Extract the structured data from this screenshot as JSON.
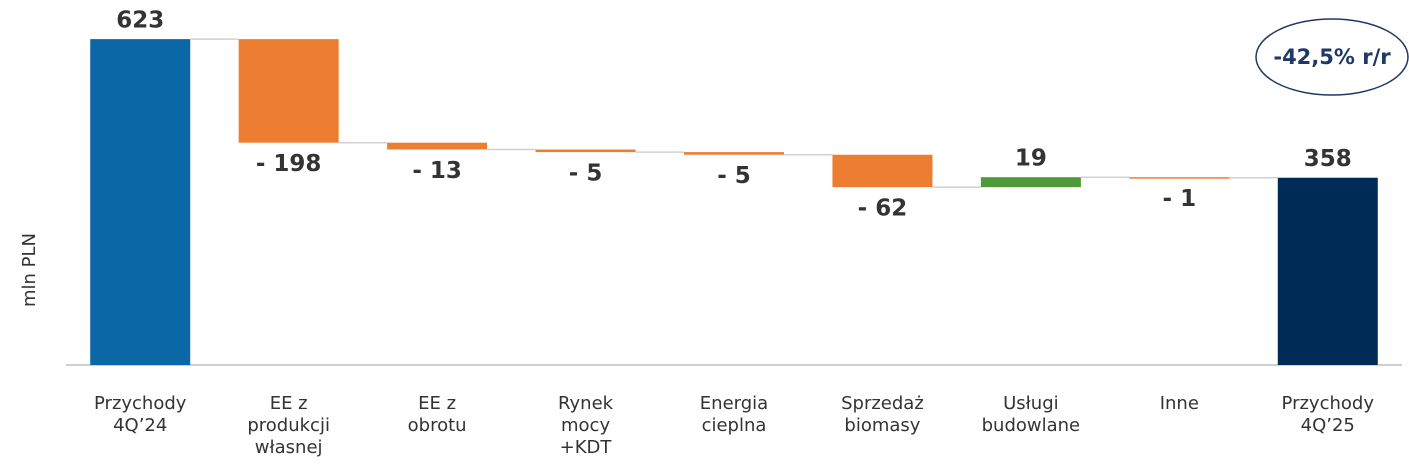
{
  "chart_data": {
    "type": "waterfall",
    "categories": [
      "Przychody\n4Q’24",
      "EE z\nprodukcji\nwłasnej",
      "EE z\nobrotu",
      "Rynek\nmocy\n+KDT",
      "Energia\ncieplna",
      "Sprzedaż\nbiomasy",
      "Usługi\nbudowlane",
      "Inne",
      "Przychody\n4Q’25"
    ],
    "values": [
      623,
      -198,
      -13,
      -5,
      -5,
      -62,
      19,
      -1,
      358
    ],
    "value_labels": [
      "623",
      "- 198",
      "- 13",
      "- 5",
      "- 5",
      "- 62",
      "19",
      "- 1",
      "358"
    ],
    "measure": [
      "total",
      "relative",
      "relative",
      "relative",
      "relative",
      "relative",
      "relative",
      "relative",
      "total"
    ],
    "colors": [
      "#0b67a6",
      "#ed7d31",
      "#ed7d31",
      "#ed7d31",
      "#ed7d31",
      "#ed7d31",
      "#4e9a3b",
      "#ed7d31",
      "#002b57"
    ],
    "ylabel": "mln PLN",
    "annotation": "-42,5% r/r",
    "ylim": [
      0,
      650
    ]
  }
}
